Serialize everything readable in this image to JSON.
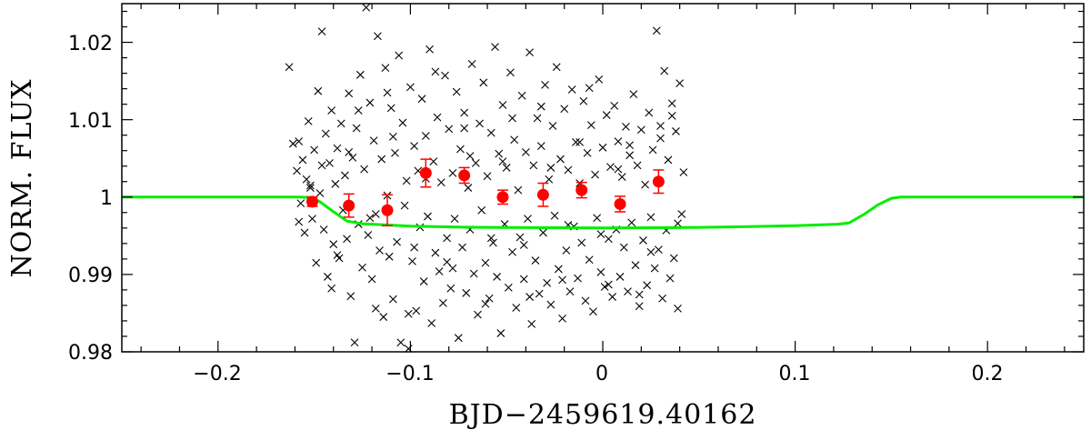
{
  "chart_data": {
    "type": "scatter",
    "title": "",
    "xlabel": "BJD−2459619.40162",
    "ylabel": "NORM.  FLUX",
    "xlim": [
      -0.25,
      0.25
    ],
    "ylim": [
      0.98,
      1.025
    ],
    "x_ticks": [
      -0.2,
      -0.1,
      0,
      0.1,
      0.2
    ],
    "x_tick_labels": [
      "−0.2",
      "−0.1",
      "0",
      "0.1",
      "0.2"
    ],
    "y_ticks": [
      0.98,
      0.99,
      1.0,
      1.01,
      1.02
    ],
    "y_tick_labels": [
      "0.98",
      "0.99",
      "1",
      "1.01",
      "1.02"
    ],
    "grid": false,
    "legend": "none",
    "colors": {
      "raw": "#000000",
      "binned": "#ff0000",
      "model": "#00ee00"
    },
    "series": [
      {
        "marker": "x",
        "points": [
          [
            -0.163,
            1.0168
          ],
          [
            -0.161,
            1.0069
          ],
          [
            -0.159,
            1.0034
          ],
          [
            -0.158,
            1.0072
          ],
          [
            -0.157,
            0.9992
          ],
          [
            -0.156,
            1.0048
          ],
          [
            -0.155,
            0.9954
          ],
          [
            -0.154,
            1.0023
          ],
          [
            -0.153,
            1.0098
          ],
          [
            -0.152,
            1.0012
          ],
          [
            -0.151,
            0.9972
          ],
          [
            -0.15,
            1.0061
          ],
          [
            -0.149,
            0.9915
          ],
          [
            -0.148,
            1.0137
          ],
          [
            -0.147,
            1.0005
          ],
          [
            -0.146,
            1.0214
          ],
          [
            -0.145,
            0.9958
          ],
          [
            -0.144,
            1.0082
          ],
          [
            -0.143,
            0.9897
          ],
          [
            -0.142,
            1.0044
          ],
          [
            -0.141,
            1.0112
          ],
          [
            -0.14,
            0.9939
          ],
          [
            -0.139,
            1.0017
          ],
          [
            -0.138,
            1.0063
          ],
          [
            -0.137,
            0.9921
          ],
          [
            -0.136,
            1.0095
          ],
          [
            -0.135,
            0.9983
          ],
          [
            -0.134,
            1.0028
          ],
          [
            -0.133,
            0.9946
          ],
          [
            -0.132,
            1.0134
          ],
          [
            -0.131,
            0.9872
          ],
          [
            -0.13,
            1.0051
          ],
          [
            -0.129,
            0.9812
          ],
          [
            -0.128,
            1.0089
          ],
          [
            -0.127,
            0.9965
          ],
          [
            -0.126,
            1.0158
          ],
          [
            -0.125,
            0.9909
          ],
          [
            -0.124,
            1.0036
          ],
          [
            -0.123,
            1.0245
          ],
          [
            -0.122,
            0.9951
          ],
          [
            -0.121,
            1.0122
          ],
          [
            -0.12,
            0.9894
          ],
          [
            -0.119,
            1.0073
          ],
          [
            -0.118,
            0.9978
          ],
          [
            -0.117,
            1.0208
          ],
          [
            -0.116,
            0.9931
          ],
          [
            -0.115,
            1.0049
          ],
          [
            -0.114,
            0.9845
          ],
          [
            -0.113,
            1.0167
          ],
          [
            -0.112,
            1.0002
          ],
          [
            -0.111,
            0.9923
          ],
          [
            -0.11,
            1.0115
          ],
          [
            -0.109,
            0.9868
          ],
          [
            -0.108,
            1.0057
          ],
          [
            -0.107,
            0.9942
          ],
          [
            -0.106,
            1.0183
          ],
          [
            -0.105,
            0.9812
          ],
          [
            -0.104,
            1.0096
          ],
          [
            -0.103,
            0.9989
          ],
          [
            -0.102,
            1.0021
          ],
          [
            -0.101,
            0.9804
          ],
          [
            -0.1,
            1.0142
          ],
          [
            -0.099,
            0.9917
          ],
          [
            -0.098,
            1.0066
          ],
          [
            -0.097,
            0.9853
          ],
          [
            -0.096,
            1.0034
          ],
          [
            -0.095,
            0.9961
          ],
          [
            -0.094,
            1.0127
          ],
          [
            -0.093,
            0.9891
          ],
          [
            -0.092,
            1.0079
          ],
          [
            -0.091,
            0.9975
          ],
          [
            -0.09,
            1.0191
          ],
          [
            -0.089,
            0.9837
          ],
          [
            -0.088,
            1.0046
          ],
          [
            -0.087,
            0.9928
          ],
          [
            -0.086,
            1.0103
          ],
          [
            -0.085,
            0.9904
          ],
          [
            -0.084,
            1.0019
          ],
          [
            -0.083,
            0.9863
          ],
          [
            -0.082,
            1.0157
          ],
          [
            -0.081,
            0.9947
          ],
          [
            -0.08,
            1.0088
          ],
          [
            -0.079,
            0.9882
          ],
          [
            -0.078,
            1.0031
          ],
          [
            -0.077,
            0.9972
          ],
          [
            -0.076,
            1.0136
          ],
          [
            -0.075,
            0.9818
          ],
          [
            -0.074,
            1.0062
          ],
          [
            -0.073,
            0.9935
          ],
          [
            -0.072,
            1.0109
          ],
          [
            -0.071,
            0.9876
          ],
          [
            -0.07,
            1.0012
          ],
          [
            -0.069,
            0.9958
          ],
          [
            -0.068,
            1.0172
          ],
          [
            -0.067,
            0.9901
          ],
          [
            -0.066,
            1.0044
          ],
          [
            -0.065,
            0.9848
          ],
          [
            -0.064,
            1.0095
          ],
          [
            -0.063,
            0.9983
          ],
          [
            -0.062,
            1.0148
          ],
          [
            -0.061,
            0.9915
          ],
          [
            -0.06,
            1.0027
          ],
          [
            -0.059,
            0.9869
          ],
          [
            -0.058,
            1.0083
          ],
          [
            -0.057,
            0.9941
          ],
          [
            -0.056,
            1.0194
          ],
          [
            -0.055,
            0.9897
          ],
          [
            -0.054,
            1.0056
          ],
          [
            -0.053,
            0.9824
          ],
          [
            -0.052,
            1.0119
          ],
          [
            -0.051,
            0.9965
          ],
          [
            -0.05,
            1.0038
          ],
          [
            -0.049,
            0.9883
          ],
          [
            -0.048,
            1.0161
          ],
          [
            -0.047,
            0.9929
          ],
          [
            -0.046,
            1.0074
          ],
          [
            -0.045,
            0.9857
          ],
          [
            -0.044,
            1.0009
          ],
          [
            -0.043,
            0.9948
          ],
          [
            -0.042,
            1.0131
          ],
          [
            -0.041,
            0.9894
          ],
          [
            -0.04,
            1.0058
          ],
          [
            -0.039,
            0.9972
          ],
          [
            -0.038,
            1.0187
          ],
          [
            -0.037,
            0.9836
          ],
          [
            -0.036,
            1.0041
          ],
          [
            -0.035,
            0.9918
          ],
          [
            -0.034,
            1.0102
          ],
          [
            -0.033,
            0.9875
          ],
          [
            -0.032,
            1.0066
          ],
          [
            -0.031,
            0.9954
          ],
          [
            -0.03,
            1.0145
          ],
          [
            -0.029,
            0.9889
          ],
          [
            -0.028,
            1.0023
          ],
          [
            -0.027,
            0.9861
          ],
          [
            -0.026,
            1.0092
          ],
          [
            -0.025,
            0.9976
          ],
          [
            -0.024,
            1.0168
          ],
          [
            -0.023,
            0.9907
          ],
          [
            -0.022,
            1.0049
          ],
          [
            -0.021,
            0.9843
          ],
          [
            -0.02,
            1.0114
          ],
          [
            -0.019,
            0.9931
          ],
          [
            -0.018,
            1.0035
          ],
          [
            -0.017,
            0.9878
          ],
          [
            -0.016,
            1.0139
          ],
          [
            -0.015,
            0.9962
          ],
          [
            -0.014,
            1.0071
          ],
          [
            -0.013,
            0.9895
          ],
          [
            -0.012,
            1.0018
          ],
          [
            -0.011,
            0.9941
          ],
          [
            -0.01,
            1.0124
          ],
          [
            -0.009,
            0.9866
          ],
          [
            -0.008,
            1.0057
          ],
          [
            -0.007,
            0.9919
          ],
          [
            -0.006,
            1.0093
          ],
          [
            -0.005,
            0.9852
          ],
          [
            -0.004,
            1.0029
          ],
          [
            -0.003,
            0.9973
          ],
          [
            -0.002,
            1.0152
          ],
          [
            -0.001,
            0.9903
          ],
          [
            0.0,
            1.0064
          ],
          [
            0.001,
            0.9884
          ],
          [
            0.002,
            1.0106
          ],
          [
            0.003,
            0.9946
          ],
          [
            0.004,
            1.0039
          ],
          [
            0.005,
            0.9871
          ],
          [
            0.006,
            1.0118
          ],
          [
            0.007,
            0.9958
          ],
          [
            0.008,
            1.0072
          ],
          [
            0.009,
            0.9897
          ],
          [
            0.01,
            1.0026
          ],
          [
            0.011,
            0.9935
          ],
          [
            0.012,
            1.0091
          ],
          [
            0.013,
            0.9878
          ],
          [
            0.014,
            1.0054
          ],
          [
            0.015,
            0.9967
          ],
          [
            0.016,
            1.0133
          ],
          [
            0.017,
            0.9912
          ],
          [
            0.018,
            1.0041
          ],
          [
            0.019,
            0.9859
          ],
          [
            0.02,
            1.0087
          ],
          [
            0.021,
            0.9944
          ],
          [
            0.022,
            1.0016
          ],
          [
            0.023,
            0.9886
          ],
          [
            0.024,
            1.0109
          ],
          [
            0.025,
            0.9974
          ],
          [
            0.026,
            1.0061
          ],
          [
            0.027,
            0.9908
          ],
          [
            0.028,
            1.0215
          ],
          [
            0.029,
            0.9932
          ],
          [
            0.03,
            1.0076
          ],
          [
            0.031,
            0.9869
          ],
          [
            0.032,
            1.0163
          ],
          [
            0.033,
            0.9957
          ],
          [
            0.034,
            1.0048
          ],
          [
            0.035,
            0.9895
          ],
          [
            0.036,
            1.0121
          ],
          [
            0.037,
            0.9921
          ],
          [
            0.038,
            1.0085
          ],
          [
            0.039,
            0.9856
          ],
          [
            0.04,
            1.0147
          ],
          [
            0.041,
            0.9978
          ],
          [
            0.042,
            1.0032
          ],
          [
            -0.158,
            0.9968
          ],
          [
            -0.146,
            1.0041
          ],
          [
            -0.138,
            0.9925
          ],
          [
            -0.127,
            1.0112
          ],
          [
            -0.118,
            0.9856
          ],
          [
            -0.109,
            1.0078
          ],
          [
            -0.098,
            0.9935
          ],
          [
            -0.087,
            1.0162
          ],
          [
            -0.078,
            0.9908
          ],
          [
            -0.069,
            1.0053
          ],
          [
            -0.058,
            0.9947
          ],
          [
            -0.047,
            1.0102
          ],
          [
            -0.038,
            0.9871
          ],
          [
            -0.027,
            1.0038
          ],
          [
            -0.018,
            0.9964
          ],
          [
            -0.007,
            1.0141
          ],
          [
            0.003,
            0.9887
          ],
          [
            0.014,
            1.0067
          ],
          [
            0.025,
            0.9929
          ],
          [
            0.036,
            1.0105
          ],
          [
            -0.152,
            1.0015
          ],
          [
            -0.141,
            0.9882
          ],
          [
            -0.132,
            1.0058
          ],
          [
            -0.121,
            0.9973
          ],
          [
            -0.112,
            1.0135
          ],
          [
            -0.101,
            0.9849
          ],
          [
            -0.092,
            1.0024
          ],
          [
            -0.081,
            0.9916
          ],
          [
            -0.072,
            1.0089
          ],
          [
            -0.061,
            0.9862
          ],
          [
            -0.052,
            1.0046
          ],
          [
            -0.041,
            0.9938
          ],
          [
            -0.032,
            1.0117
          ],
          [
            -0.021,
            0.9893
          ],
          [
            -0.012,
            1.0071
          ],
          [
            -0.001,
            0.9952
          ],
          [
            0.008,
            1.0036
          ],
          [
            0.019,
            0.9874
          ],
          [
            0.03,
            1.0092
          ],
          [
            0.039,
            0.9966
          ]
        ]
      },
      {
        "marker": "circle",
        "points": [
          [
            -0.151,
            0.9994,
            0.0006
          ],
          [
            -0.132,
            0.9989,
            0.0015
          ],
          [
            -0.112,
            0.9983,
            0.002
          ],
          [
            -0.092,
            1.0031,
            0.0018
          ],
          [
            -0.072,
            1.0028,
            0.001
          ],
          [
            -0.052,
            1.0,
            0.0009
          ],
          [
            -0.031,
            1.0003,
            0.0015
          ],
          [
            -0.011,
            1.0009,
            0.001
          ],
          [
            0.009,
            0.9991,
            0.001
          ],
          [
            0.029,
            1.002,
            0.0015
          ]
        ]
      },
      {
        "marker": "line",
        "points": [
          [
            -0.25,
            1.0
          ],
          [
            -0.158,
            1.0
          ],
          [
            -0.152,
            0.99995
          ],
          [
            -0.147,
            0.9994
          ],
          [
            -0.14,
            0.9981
          ],
          [
            -0.133,
            0.9969
          ],
          [
            -0.125,
            0.99655
          ],
          [
            -0.1,
            0.99625
          ],
          [
            -0.07,
            0.9961
          ],
          [
            -0.04,
            0.99605
          ],
          [
            0.0,
            0.996
          ],
          [
            0.04,
            0.99605
          ],
          [
            0.07,
            0.99615
          ],
          [
            0.1,
            0.9963
          ],
          [
            0.122,
            0.9965
          ],
          [
            0.128,
            0.99665
          ],
          [
            0.136,
            0.9978
          ],
          [
            0.143,
            0.999
          ],
          [
            0.15,
            0.99985
          ],
          [
            0.155,
            1.0
          ],
          [
            0.25,
            1.0
          ]
        ]
      }
    ]
  }
}
